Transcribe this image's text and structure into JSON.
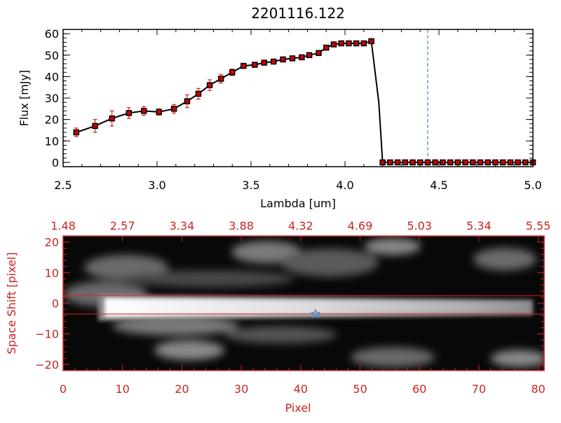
{
  "chart_data": [
    {
      "type": "line",
      "title": "2201116.122",
      "xlabel": "Lambda [um]",
      "ylabel": "Flux [mJy]",
      "xlim": [
        2.5,
        5.0
      ],
      "ylim": [
        -2,
        62
      ],
      "xticks": [
        2.5,
        3.0,
        3.5,
        4.0,
        4.5,
        5.0
      ],
      "xtick_labels": [
        "2.5",
        "3.0",
        "3.5",
        "4.0",
        "4.5",
        "5.0"
      ],
      "yticks": [
        0,
        10,
        20,
        30,
        40,
        50,
        60
      ],
      "ytick_labels": [
        "0",
        "10",
        "20",
        "30",
        "40",
        "50",
        "60"
      ],
      "marker": "square",
      "colors": {
        "line": "#000000",
        "marker_fill": "#cc0000",
        "errorbar": "#cc0000",
        "vline": "#3c8cdc",
        "zero_line": "#cc0000"
      },
      "vline_x": 4.44,
      "x": [
        2.57,
        2.67,
        2.76,
        2.85,
        2.93,
        3.01,
        3.09,
        3.16,
        3.22,
        3.28,
        3.34,
        3.4,
        3.46,
        3.52,
        3.57,
        3.62,
        3.67,
        3.72,
        3.77,
        3.81,
        3.86,
        3.9,
        3.94,
        3.98,
        4.02,
        4.06,
        4.1,
        4.14,
        4.18,
        4.2,
        4.24,
        4.28,
        4.32,
        4.36,
        4.4,
        4.44,
        4.48,
        4.52,
        4.56,
        4.6,
        4.64,
        4.68,
        4.72,
        4.76,
        4.8,
        4.84,
        4.88,
        4.92,
        4.96,
        5.0
      ],
      "y": [
        14,
        17,
        20.5,
        23,
        24,
        23.5,
        25,
        28.5,
        32,
        36,
        39,
        42,
        45,
        45.5,
        46.5,
        47,
        48,
        48.5,
        49,
        50,
        51,
        53.5,
        55,
        55.5,
        55.5,
        55.5,
        55.5,
        56.5,
        28,
        0,
        0,
        0,
        0,
        0,
        0,
        0,
        0,
        0,
        0,
        0,
        0,
        0,
        0,
        0,
        0,
        0,
        0,
        0,
        0,
        0
      ],
      "yerr": [
        2,
        3,
        3.5,
        2.5,
        2,
        1.5,
        2,
        3,
        2.5,
        2.5,
        2,
        1.5,
        1,
        1,
        1,
        1,
        1,
        1,
        1,
        1,
        1,
        1,
        1,
        1,
        1,
        1,
        1,
        1,
        0,
        0,
        0,
        0,
        0,
        0,
        0,
        0,
        0,
        0,
        0,
        0,
        0,
        0,
        0,
        0,
        0,
        0,
        0,
        0,
        0,
        0
      ]
    },
    {
      "type": "heatmap",
      "xlabel": "Pixel",
      "ylabel": "Space Shift [pixel]",
      "xlim": [
        0,
        81
      ],
      "ylim": [
        -22,
        22
      ],
      "xticks": [
        0,
        10,
        20,
        30,
        40,
        50,
        60,
        70,
        80
      ],
      "xtick_labels": [
        "0",
        "10",
        "20",
        "30",
        "40",
        "50",
        "60",
        "70",
        "80"
      ],
      "yticks": [
        -20,
        -10,
        0,
        10,
        20
      ],
      "ytick_labels": [
        "−20",
        "−10",
        "0",
        "10",
        "20"
      ],
      "top_ticks": [
        0,
        10,
        20,
        30,
        40,
        50,
        60,
        70,
        80
      ],
      "top_tick_labels": [
        "1.48",
        "2.57",
        "3.34",
        "3.88",
        "4.32",
        "4.69",
        "5.03",
        "5.34",
        "5.55"
      ],
      "aperture_lines_y": [
        2.5,
        -3.5
      ],
      "star_marker": {
        "x": 42.5,
        "y": -3.5
      },
      "colors": {
        "axes": "#cc2222",
        "aperture": "#dd2222",
        "star": "#3c8cdc",
        "labels": "#cc2222"
      },
      "colormap": "grayscale"
    }
  ]
}
